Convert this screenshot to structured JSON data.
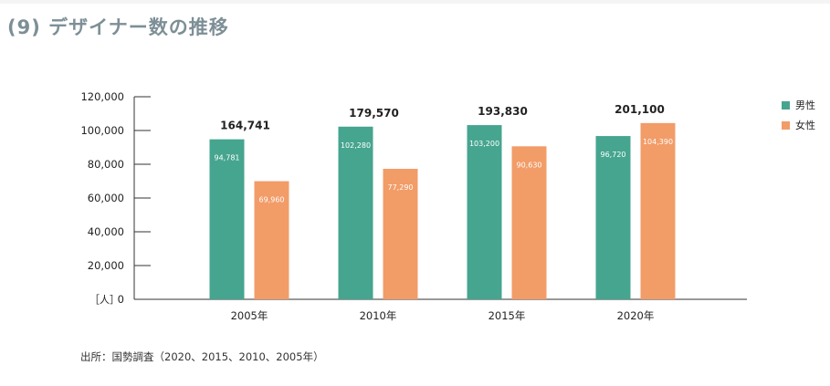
{
  "page": {
    "title": "(9) デザイナー数の推移",
    "source": "出所：国勢調査（2020、2015、2010、2005年）"
  },
  "colors": {
    "male": "#46a58f",
    "female": "#f29c68",
    "title": "#7d8f96"
  },
  "legend": [
    {
      "label": "男性",
      "color": "#46a58f"
    },
    {
      "label": "女性",
      "color": "#f29c68"
    }
  ],
  "chart_data": {
    "type": "bar",
    "categories": [
      "2005年",
      "2010年",
      "2015年",
      "2020年"
    ],
    "series": [
      {
        "name": "男性",
        "values": [
          94781,
          102280,
          103200,
          96720
        ],
        "labels": [
          "94,781",
          "102,280",
          "103,200",
          "96,720"
        ]
      },
      {
        "name": "女性",
        "values": [
          69960,
          77290,
          90630,
          104390
        ],
        "labels": [
          "69,960",
          "77,290",
          "90,630",
          "104,390"
        ]
      }
    ],
    "totals": [
      164741,
      179570,
      193830,
      201100
    ],
    "total_labels": [
      "164,741",
      "179,570",
      "193,830",
      "201,100"
    ],
    "ylim": [
      0,
      120000
    ],
    "yticks": [
      0,
      20000,
      40000,
      60000,
      80000,
      100000,
      120000
    ],
    "ytick_labels": [
      "0",
      "20,000",
      "40,000",
      "60,000",
      "80,000",
      "100,000",
      "120,000"
    ],
    "ylabel": "［人］",
    "xlabel": "",
    "legend_position": "right",
    "grid": false
  }
}
